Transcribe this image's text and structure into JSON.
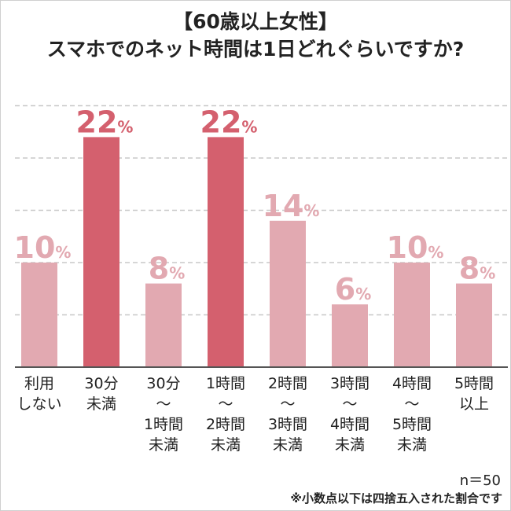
{
  "chart_data": {
    "type": "bar",
    "title_line1": "【60歳以上女性】",
    "title_line2": "スマホでのネット時間は1日どれぐらいですか?",
    "categories": [
      "利用\nしない",
      "30分\n未満",
      "30分\n〜\n1時間\n未満",
      "1時間\n〜\n2時間\n未満",
      "2時間\n〜\n3時間\n未満",
      "3時間\n〜\n4時間\n未満",
      "4時間\n〜\n5時間\n未満",
      "5時間\n以上"
    ],
    "values": [
      10,
      22,
      8,
      22,
      14,
      6,
      10,
      8
    ],
    "value_unit": "%",
    "highlight_indices": [
      1,
      3
    ],
    "ylim": [
      0,
      25
    ],
    "grid": true,
    "colors": {
      "highlight": "#d4606e",
      "normal": "#e2a9b1",
      "highlight_label": "#d4606e",
      "normal_label": "#e2a9b1",
      "grid": "#c8c8c8",
      "axis": "#555555"
    }
  },
  "sample_size": "n＝50",
  "footnote": "※小数点以下は四捨五入された割合です"
}
